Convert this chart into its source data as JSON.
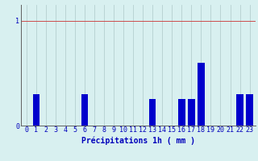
{
  "hours": [
    0,
    1,
    2,
    3,
    4,
    5,
    6,
    7,
    8,
    9,
    10,
    11,
    12,
    13,
    14,
    15,
    16,
    17,
    18,
    19,
    20,
    21,
    22,
    23
  ],
  "values": [
    0,
    0.3,
    0,
    0,
    0,
    0,
    0.3,
    0,
    0,
    0,
    0,
    0,
    0,
    0.25,
    0,
    0,
    0.25,
    0.25,
    0.6,
    0,
    0,
    0,
    0.3,
    0.3
  ],
  "bar_color": "#0000cc",
  "background_color": "#d8f0f0",
  "grid_color_x": "#adc8c8",
  "grid_color_y": "#cc3333",
  "axis_color": "#606060",
  "text_color": "#0000bb",
  "title": "Précipitations 1h ( mm )",
  "ylim": [
    0,
    1.15
  ],
  "yticks": [
    0,
    1
  ],
  "xlabel_fontsize": 7,
  "tick_fontsize": 6
}
